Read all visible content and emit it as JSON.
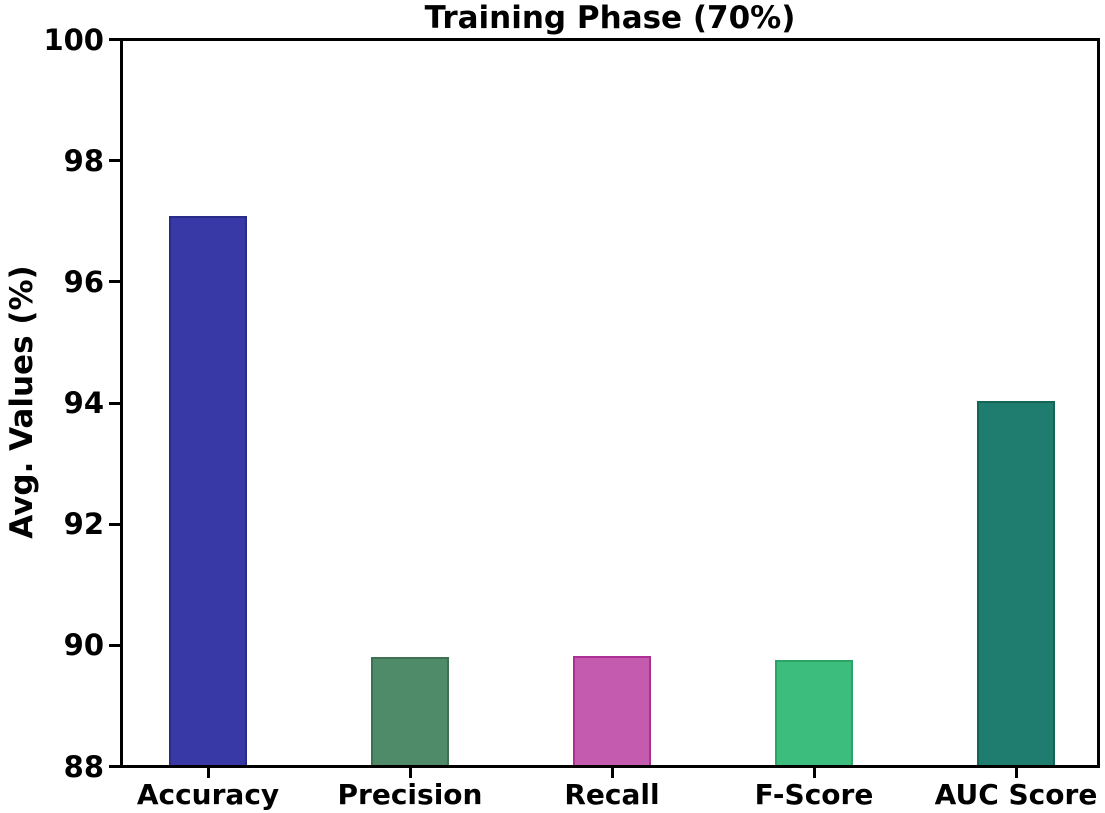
{
  "figure": {
    "background": "#FFFFFF",
    "text_color": "#000000",
    "spine_color": "#000000"
  },
  "chart_data": {
    "type": "bar",
    "title": "Training Phase (70%)",
    "xlabel": "",
    "ylabel": "Avg. Values (%)",
    "categories": [
      "Accuracy",
      "Precision",
      "Recall",
      "F-Score",
      "AUC Score"
    ],
    "values": [
      97.08,
      89.8,
      89.82,
      89.75,
      94.03
    ],
    "ylim": [
      88,
      100
    ],
    "yticks": [
      88,
      90,
      92,
      94,
      96,
      98,
      100
    ],
    "bar_colors": [
      "#3838A6",
      "#4F8B68",
      "#C45BAE",
      "#3DBD7D",
      "#1F7D70"
    ],
    "bar_edge_colors": [
      "#2B2B8A",
      "#3E7052",
      "#AC2F94",
      "#2CA468",
      "#166455"
    ],
    "grid": false,
    "legend_position": "none"
  }
}
